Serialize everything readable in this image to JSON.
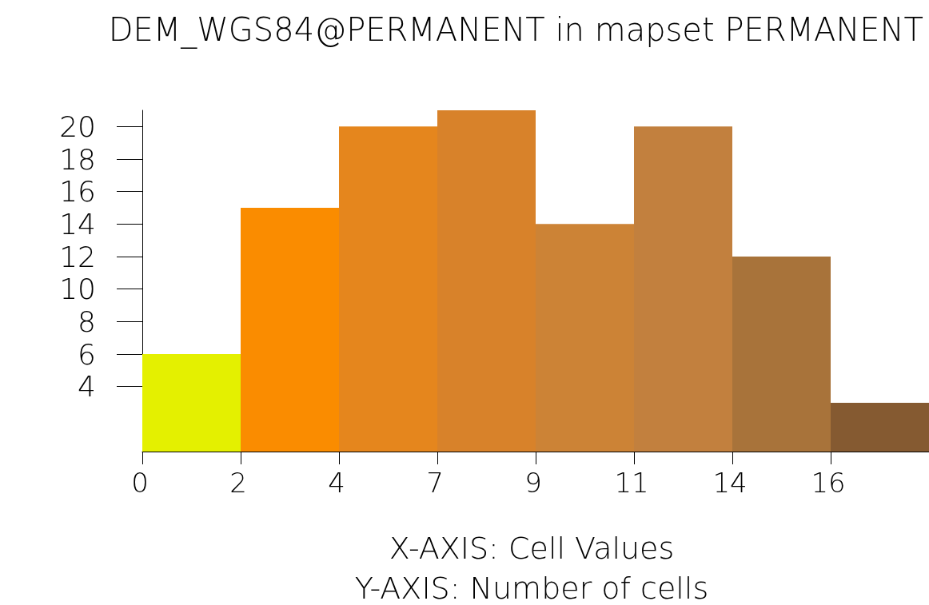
{
  "chart_data": {
    "type": "bar",
    "title": "DEM_WGS84@PERMANENT in mapset PERMANENT",
    "xlabel": "X-AXIS: Cell Values",
    "annotations": [
      "Y-AXIS: Number of cells"
    ],
    "categories": [
      "0",
      "2",
      "4",
      "7",
      "9",
      "11",
      "14",
      "16"
    ],
    "values": [
      6,
      15,
      20,
      21,
      14,
      20,
      12,
      3
    ],
    "colors": [
      "#e4f000",
      "#fa8c00",
      "#e5861d",
      "#d8822a",
      "#cc8336",
      "#c2803e",
      "#a8733a",
      "#855a31"
    ],
    "ylim": [
      0,
      21
    ],
    "yticks": [
      4,
      6,
      8,
      10,
      12,
      14,
      16,
      18,
      20
    ],
    "grid": false
  }
}
